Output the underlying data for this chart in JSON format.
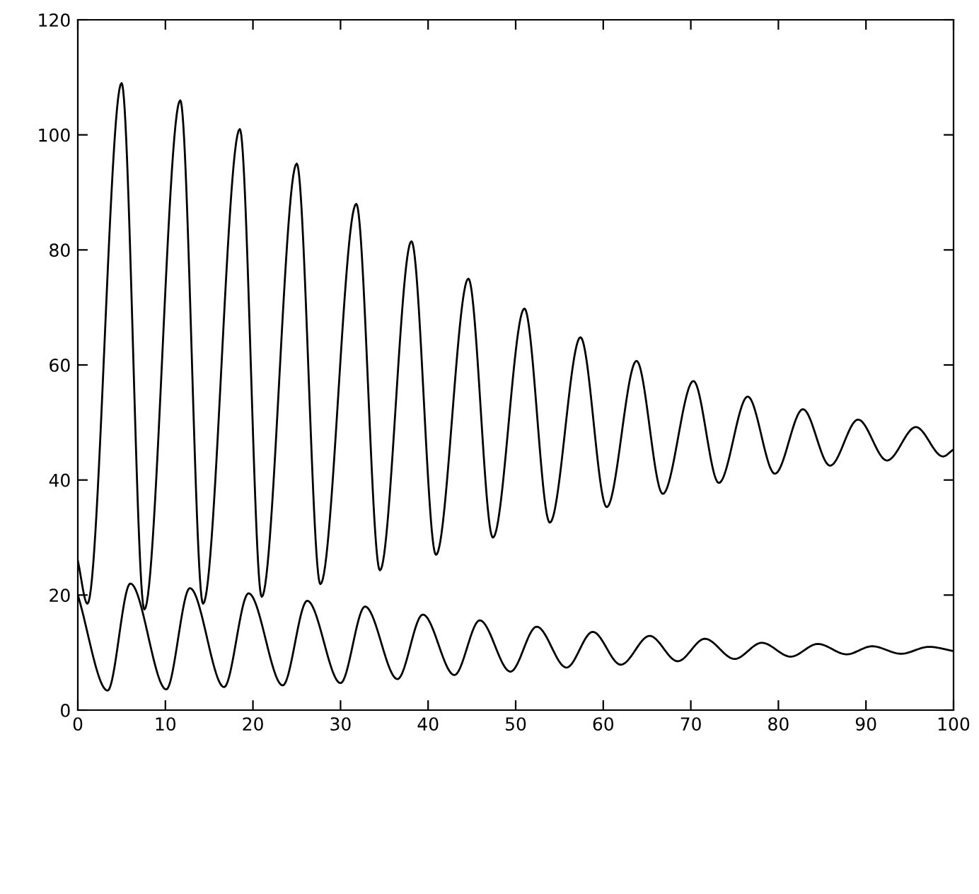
{
  "chart_data": {
    "type": "line",
    "xlim": [
      0,
      100
    ],
    "ylim": [
      0,
      120
    ],
    "xticks": [
      0,
      10,
      20,
      30,
      40,
      50,
      60,
      70,
      80,
      90,
      100
    ],
    "yticks": [
      0,
      20,
      40,
      60,
      80,
      100,
      120
    ],
    "grid": false,
    "marker": "none",
    "line_style": "solid",
    "series": [
      {
        "color": "#000000",
        "x": [
          0,
          1.1,
          5.0,
          7.6,
          11.7,
          14.3,
          18.5,
          21.0,
          25.0,
          27.7,
          31.8,
          34.5,
          38.1,
          40.9,
          44.6,
          47.4,
          51.0,
          53.9,
          57.4,
          60.4,
          63.8,
          66.8,
          70.3,
          73.2,
          76.5,
          79.6,
          82.8,
          85.9,
          89.1,
          92.4,
          95.7,
          98.8,
          99.9
        ],
        "values": [
          26,
          18.5,
          109,
          17.5,
          106,
          18.5,
          101,
          19.7,
          95,
          21.9,
          88,
          24.3,
          81.5,
          27,
          75,
          30,
          69.8,
          32.6,
          64.8,
          35.3,
          60.7,
          37.6,
          57.2,
          39.5,
          54.5,
          41.1,
          52.3,
          42.5,
          50.5,
          43.4,
          49.2,
          44.1,
          45.2
        ]
      },
      {
        "color": "#000000",
        "x": [
          0,
          3.4,
          6.0,
          10.1,
          12.8,
          16.7,
          19.5,
          23.4,
          26.2,
          30.0,
          32.8,
          36.5,
          39.4,
          43.0,
          45.9,
          49.4,
          52.4,
          55.8,
          58.8,
          62.0,
          65.3,
          68.5,
          71.6,
          75.0,
          78.1,
          81.4,
          84.5,
          87.8,
          90.7,
          94.0,
          97.2,
          99.9
        ],
        "values": [
          20,
          3.4,
          22,
          3.6,
          21.2,
          4.0,
          20.3,
          4.3,
          19.0,
          4.7,
          18.0,
          5.4,
          16.6,
          6.1,
          15.6,
          6.7,
          14.5,
          7.4,
          13.6,
          7.9,
          12.9,
          8.5,
          12.4,
          8.9,
          11.7,
          9.3,
          11.5,
          9.7,
          11.1,
          9.8,
          11.0,
          10.3
        ]
      }
    ]
  }
}
